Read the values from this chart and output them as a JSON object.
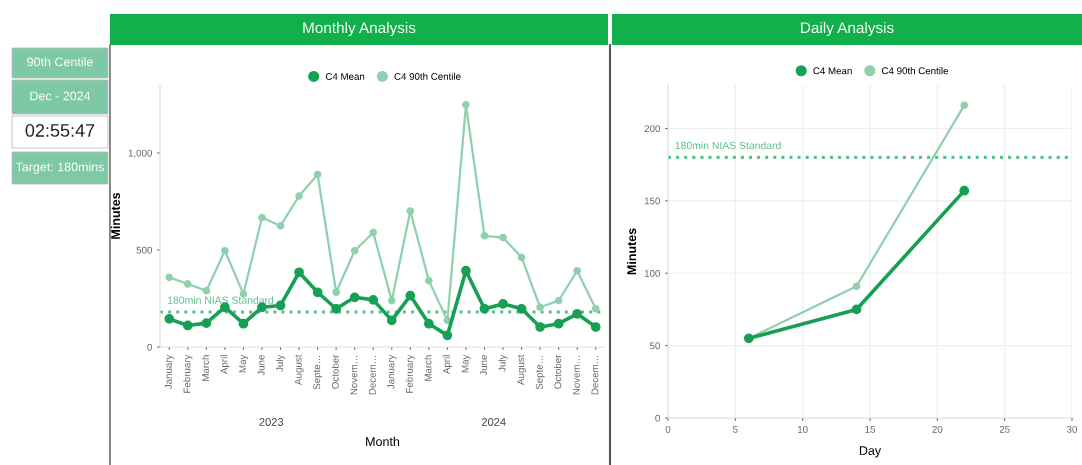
{
  "chart_data": [
    {
      "type": "other",
      "annotations": [
        "90th Centile",
        "Dec - 2024",
        "02:55:47",
        "Target: 180mins"
      ]
    },
    {
      "type": "line",
      "title": "Monthly Analysis",
      "xlabel": "Month",
      "ylabel": "Minutes",
      "legend": "top",
      "grid": false,
      "marker": "circle",
      "line_style": "solid",
      "categories": [
        "January",
        "February",
        "March",
        "April",
        "May",
        "June",
        "July",
        "August",
        "Septe…",
        "October",
        "Novem…",
        "Decem…",
        "January",
        "February",
        "March",
        "April",
        "May",
        "June",
        "July",
        "August",
        "Septe…",
        "October",
        "Novem…",
        "Decem…"
      ],
      "series": [
        {
          "name": "C4 Mean",
          "color": "#17a055",
          "values": [
            145,
            111,
            123,
            205,
            120,
            205,
            214,
            385,
            282,
            197,
            256,
            243,
            137,
            265,
            120,
            60,
            393,
            197,
            222,
            197,
            103,
            120,
            171,
            103
          ]
        },
        {
          "name": "C4 90th Centile",
          "color": "#8fd0ad",
          "values": [
            359,
            325,
            290,
            496,
            274,
            667,
            624,
            778,
            889,
            282,
            496,
            590,
            239,
            701,
            342,
            137,
            1248,
            573,
            564,
            462,
            205,
            239,
            393,
            197
          ]
        }
      ],
      "ylim": [
        0,
        1350
      ],
      "yticks": [
        0,
        500,
        {
          "value": 1000,
          "label": "1,000"
        }
      ],
      "ref_lines": [
        {
          "axis": "y",
          "value": 180,
          "label": "180min NIAS Standard",
          "color": "#5cbf8a",
          "line_style": "dotted"
        }
      ],
      "annotations": [
        "2023",
        "2024"
      ]
    },
    {
      "type": "line",
      "title": "Daily Analysis",
      "xlabel": "Day",
      "ylabel": "Minutes",
      "legend": "top",
      "grid": true,
      "marker": "circle",
      "line_style": "solid",
      "x": [
        6,
        14,
        22
      ],
      "series": [
        {
          "name": "C4 Mean",
          "color": "#17a055",
          "values": [
            55,
            75,
            157
          ]
        },
        {
          "name": "C4 90th Centile",
          "color": "#8fd0ad",
          "values": [
            55,
            91,
            216
          ]
        }
      ],
      "xlim": [
        0,
        30
      ],
      "xticks": [
        0,
        5,
        10,
        15,
        20,
        25,
        30
      ],
      "ylim": [
        0,
        230
      ],
      "yticks": [
        0,
        50,
        100,
        150,
        200
      ],
      "ref_lines": [
        {
          "axis": "y",
          "value": 180,
          "label": "180min NIAS Standard",
          "color": "#5cbf8a",
          "line_style": "dotted"
        }
      ]
    }
  ]
}
